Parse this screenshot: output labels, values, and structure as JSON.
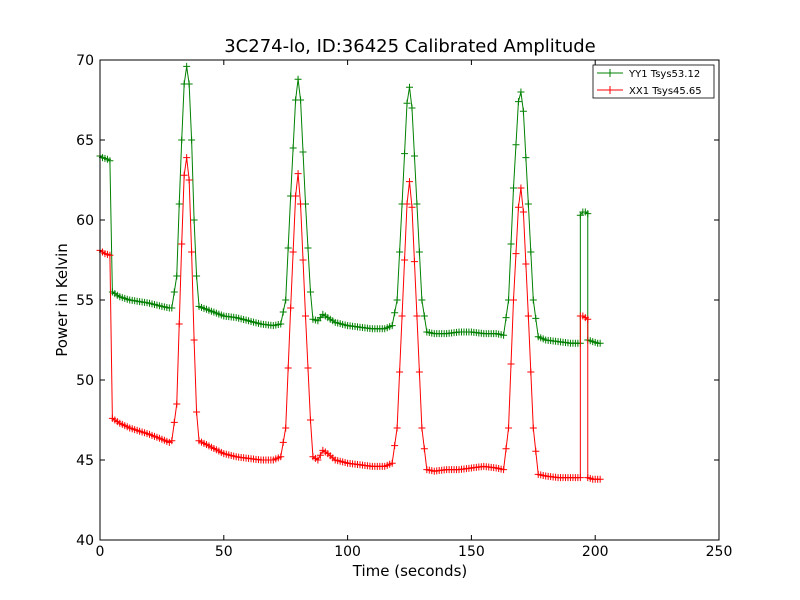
{
  "chart_data": {
    "type": "line",
    "title": "3C274-lo, ID:36425 Calibrated Amplitude",
    "xlabel": "Time (seconds)",
    "ylabel": "Power in Kelvin",
    "xlim": [
      0,
      250
    ],
    "ylim": [
      40,
      70
    ],
    "xticks": [
      "0",
      "50",
      "100",
      "150",
      "200",
      "250"
    ],
    "yticks": [
      "40",
      "45",
      "50",
      "55",
      "60",
      "65",
      "70"
    ],
    "grid": false,
    "legend_position": "top-right",
    "marker": "+",
    "series": [
      {
        "name": "YY1 Tsys53.12",
        "color": "#008000",
        "points": [
          [
            0,
            64.0
          ],
          [
            1,
            63.9
          ],
          [
            2,
            63.85
          ],
          [
            3,
            63.8
          ],
          [
            4,
            63.7
          ],
          [
            5,
            55.5
          ],
          [
            8,
            55.2
          ],
          [
            12,
            55.0
          ],
          [
            16,
            54.9
          ],
          [
            20,
            54.8
          ],
          [
            25,
            54.6
          ],
          [
            28,
            54.5
          ],
          [
            29,
            54.5
          ],
          [
            31,
            56.5
          ],
          [
            32,
            61.0
          ],
          [
            33,
            65.0
          ],
          [
            34,
            68.5
          ],
          [
            35,
            69.6
          ],
          [
            36,
            68.5
          ],
          [
            37,
            65.0
          ],
          [
            38,
            60.0
          ],
          [
            39,
            56.5
          ],
          [
            40,
            54.6
          ],
          [
            45,
            54.3
          ],
          [
            50,
            54.0
          ],
          [
            55,
            53.9
          ],
          [
            60,
            53.7
          ],
          [
            65,
            53.5
          ],
          [
            70,
            53.4
          ],
          [
            73,
            53.5
          ],
          [
            75,
            55.0
          ],
          [
            77,
            61.5
          ],
          [
            79,
            67.5
          ],
          [
            80,
            68.8
          ],
          [
            81,
            67.5
          ],
          [
            83,
            61.0
          ],
          [
            85,
            55.5
          ],
          [
            86,
            53.8
          ],
          [
            88,
            53.7
          ],
          [
            90,
            54.1
          ],
          [
            92,
            53.9
          ],
          [
            95,
            53.6
          ],
          [
            100,
            53.4
          ],
          [
            105,
            53.3
          ],
          [
            110,
            53.2
          ],
          [
            115,
            53.2
          ],
          [
            118,
            53.4
          ],
          [
            120,
            55.0
          ],
          [
            122,
            61.0
          ],
          [
            124,
            67.3
          ],
          [
            125,
            68.3
          ],
          [
            126,
            67.0
          ],
          [
            128,
            61.0
          ],
          [
            130,
            55.0
          ],
          [
            132,
            53.0
          ],
          [
            135,
            52.9
          ],
          [
            140,
            52.9
          ],
          [
            145,
            53.0
          ],
          [
            150,
            53.0
          ],
          [
            155,
            52.9
          ],
          [
            160,
            52.9
          ],
          [
            163,
            52.8
          ],
          [
            165,
            55.0
          ],
          [
            167,
            62.0
          ],
          [
            169,
            67.4
          ],
          [
            170,
            68.0
          ],
          [
            171,
            66.8
          ],
          [
            173,
            61.0
          ],
          [
            175,
            55.0
          ],
          [
            177,
            52.7
          ],
          [
            180,
            52.5
          ],
          [
            185,
            52.4
          ],
          [
            190,
            52.3
          ],
          [
            193,
            52.3
          ],
          [
            194,
            52.3
          ],
          [
            194,
            60.3
          ],
          [
            195,
            60.5
          ],
          [
            196,
            60.5
          ],
          [
            197,
            60.4
          ],
          [
            197,
            52.5
          ],
          [
            199,
            52.4
          ],
          [
            201,
            52.3
          ],
          [
            202,
            52.3
          ]
        ]
      },
      {
        "name": "XX1 Tsys45.65",
        "color": "#ff0000",
        "points": [
          [
            0,
            58.1
          ],
          [
            1,
            58.0
          ],
          [
            2,
            57.9
          ],
          [
            3,
            57.85
          ],
          [
            4,
            57.8
          ],
          [
            5,
            47.6
          ],
          [
            8,
            47.3
          ],
          [
            12,
            47.0
          ],
          [
            16,
            46.8
          ],
          [
            20,
            46.6
          ],
          [
            25,
            46.3
          ],
          [
            28,
            46.1
          ],
          [
            29,
            46.2
          ],
          [
            31,
            48.5
          ],
          [
            32,
            53.5
          ],
          [
            33,
            58.5
          ],
          [
            34,
            62.8
          ],
          [
            35,
            63.9
          ],
          [
            36,
            62.5
          ],
          [
            37,
            58.0
          ],
          [
            38,
            52.5
          ],
          [
            39,
            48.0
          ],
          [
            40,
            46.2
          ],
          [
            45,
            45.8
          ],
          [
            50,
            45.4
          ],
          [
            55,
            45.2
          ],
          [
            60,
            45.1
          ],
          [
            65,
            45.0
          ],
          [
            70,
            45.0
          ],
          [
            73,
            45.2
          ],
          [
            75,
            47.0
          ],
          [
            77,
            54.5
          ],
          [
            79,
            61.5
          ],
          [
            80,
            62.9
          ],
          [
            81,
            61.0
          ],
          [
            83,
            54.0
          ],
          [
            85,
            47.5
          ],
          [
            86,
            45.2
          ],
          [
            88,
            45.0
          ],
          [
            90,
            45.6
          ],
          [
            92,
            45.4
          ],
          [
            95,
            45.0
          ],
          [
            100,
            44.8
          ],
          [
            105,
            44.7
          ],
          [
            110,
            44.6
          ],
          [
            115,
            44.6
          ],
          [
            118,
            44.8
          ],
          [
            120,
            47.0
          ],
          [
            122,
            54.0
          ],
          [
            124,
            61.0
          ],
          [
            125,
            62.4
          ],
          [
            126,
            60.8
          ],
          [
            128,
            54.0
          ],
          [
            130,
            47.0
          ],
          [
            132,
            44.4
          ],
          [
            135,
            44.3
          ],
          [
            140,
            44.4
          ],
          [
            145,
            44.4
          ],
          [
            150,
            44.5
          ],
          [
            155,
            44.6
          ],
          [
            160,
            44.5
          ],
          [
            163,
            44.4
          ],
          [
            165,
            47.0
          ],
          [
            167,
            55.0
          ],
          [
            169,
            60.8
          ],
          [
            170,
            62.0
          ],
          [
            171,
            60.5
          ],
          [
            173,
            54.0
          ],
          [
            175,
            47.0
          ],
          [
            177,
            44.1
          ],
          [
            180,
            44.0
          ],
          [
            185,
            43.9
          ],
          [
            190,
            43.9
          ],
          [
            193,
            43.9
          ],
          [
            194,
            43.9
          ],
          [
            194,
            54.0
          ],
          [
            195,
            54.0
          ],
          [
            196,
            53.9
          ],
          [
            197,
            53.8
          ],
          [
            197,
            43.9
          ],
          [
            199,
            43.8
          ],
          [
            201,
            43.8
          ],
          [
            202,
            43.8
          ]
        ]
      }
    ]
  }
}
